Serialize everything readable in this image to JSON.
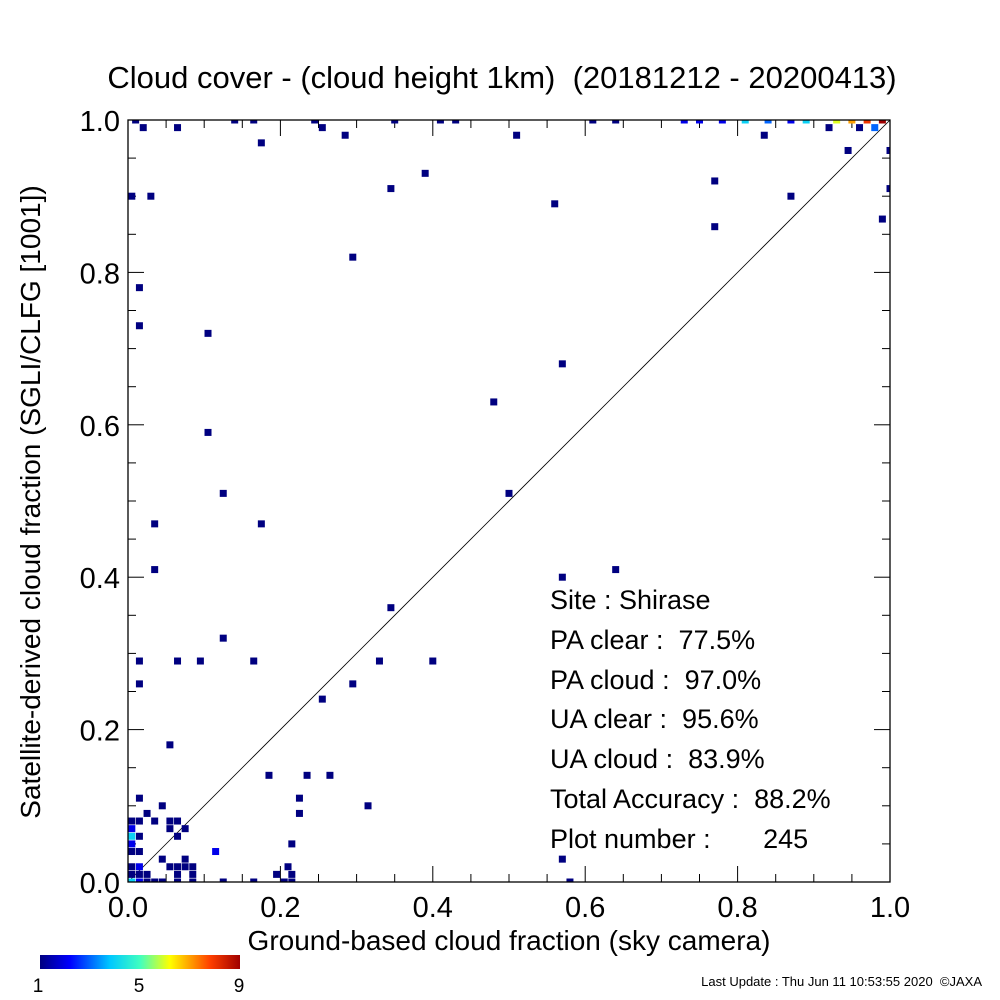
{
  "chart_data": {
    "type": "heatmap",
    "title": "Cloud cover - (cloud height 1km)  (20181212 - 20200413)",
    "xlabel": "Ground-based cloud fraction (sky camera)",
    "ylabel": "Satellite-derived cloud fraction (SGLI/CLFG [1001])",
    "xlim": [
      0,
      1
    ],
    "ylim": [
      0,
      1
    ],
    "x_ticks": [
      "0.0",
      "0.2",
      "0.4",
      "0.6",
      "0.8",
      "1.0"
    ],
    "y_ticks": [
      "0.0",
      "0.2",
      "0.4",
      "0.6",
      "0.8",
      "1.0"
    ],
    "grid": false,
    "reference_line": "y = x",
    "colorbar": {
      "min": 1,
      "max": 9,
      "ticks": [
        "1",
        "5",
        "9"
      ],
      "colormap": "rainbow"
    },
    "stats": [
      "Site : Shirase",
      "PA clear :  77.5%",
      "PA cloud :  97.0%",
      "UA clear :  95.6%",
      "UA cloud :  83.9%",
      "Total Accuracy :  88.2%",
      "Plot number :       245"
    ],
    "cells": [
      {
        "x": 0.01,
        "y": 1.0,
        "count": 1
      },
      {
        "x": 0.02,
        "y": 0.99,
        "count": 1
      },
      {
        "x": 0.065,
        "y": 0.99,
        "count": 1
      },
      {
        "x": 0.14,
        "y": 1.0,
        "count": 1
      },
      {
        "x": 0.165,
        "y": 1.0,
        "count": 1
      },
      {
        "x": 0.245,
        "y": 1.0,
        "count": 1
      },
      {
        "x": 0.255,
        "y": 0.99,
        "count": 1
      },
      {
        "x": 0.35,
        "y": 1.0,
        "count": 1
      },
      {
        "x": 0.41,
        "y": 1.0,
        "count": 1
      },
      {
        "x": 0.43,
        "y": 1.0,
        "count": 1
      },
      {
        "x": 0.61,
        "y": 1.0,
        "count": 1
      },
      {
        "x": 0.64,
        "y": 1.0,
        "count": 1
      },
      {
        "x": 0.73,
        "y": 1.0,
        "count": 2
      },
      {
        "x": 0.75,
        "y": 1.0,
        "count": 2
      },
      {
        "x": 0.78,
        "y": 1.0,
        "count": 2
      },
      {
        "x": 0.81,
        "y": 1.0,
        "count": 4
      },
      {
        "x": 0.84,
        "y": 1.0,
        "count": 3
      },
      {
        "x": 0.87,
        "y": 1.0,
        "count": 2
      },
      {
        "x": 0.89,
        "y": 1.0,
        "count": 4
      },
      {
        "x": 0.93,
        "y": 1.0,
        "count": 6
      },
      {
        "x": 0.95,
        "y": 1.0,
        "count": 7
      },
      {
        "x": 0.97,
        "y": 1.0,
        "count": 8
      },
      {
        "x": 0.99,
        "y": 1.0,
        "count": 9
      },
      {
        "x": 0.98,
        "y": 0.99,
        "count": 3
      },
      {
        "x": 0.96,
        "y": 0.99,
        "count": 1
      },
      {
        "x": 0.92,
        "y": 0.99,
        "count": 1
      },
      {
        "x": 0.175,
        "y": 0.97,
        "count": 1
      },
      {
        "x": 0.285,
        "y": 0.98,
        "count": 1
      },
      {
        "x": 0.51,
        "y": 0.98,
        "count": 1
      },
      {
        "x": 0.835,
        "y": 0.98,
        "count": 1
      },
      {
        "x": 0.945,
        "y": 0.96,
        "count": 1
      },
      {
        "x": 1.0,
        "y": 0.96,
        "count": 1
      },
      {
        "x": 0.39,
        "y": 0.93,
        "count": 1
      },
      {
        "x": 0.77,
        "y": 0.92,
        "count": 1
      },
      {
        "x": 0.345,
        "y": 0.91,
        "count": 1
      },
      {
        "x": 1.0,
        "y": 0.91,
        "count": 1
      },
      {
        "x": 0.005,
        "y": 0.9,
        "count": 1
      },
      {
        "x": 0.03,
        "y": 0.9,
        "count": 1
      },
      {
        "x": 0.87,
        "y": 0.9,
        "count": 1
      },
      {
        "x": 0.56,
        "y": 0.89,
        "count": 1
      },
      {
        "x": 0.99,
        "y": 0.87,
        "count": 1
      },
      {
        "x": 0.77,
        "y": 0.86,
        "count": 1
      },
      {
        "x": 0.295,
        "y": 0.82,
        "count": 1
      },
      {
        "x": 0.015,
        "y": 0.78,
        "count": 1
      },
      {
        "x": 0.015,
        "y": 0.73,
        "count": 1
      },
      {
        "x": 0.105,
        "y": 0.72,
        "count": 1
      },
      {
        "x": 0.57,
        "y": 0.68,
        "count": 1
      },
      {
        "x": 0.48,
        "y": 0.63,
        "count": 1
      },
      {
        "x": 0.105,
        "y": 0.59,
        "count": 1
      },
      {
        "x": 0.125,
        "y": 0.51,
        "count": 1
      },
      {
        "x": 0.5,
        "y": 0.51,
        "count": 1
      },
      {
        "x": 0.035,
        "y": 0.47,
        "count": 1
      },
      {
        "x": 0.175,
        "y": 0.47,
        "count": 1
      },
      {
        "x": 0.57,
        "y": 0.4,
        "count": 1
      },
      {
        "x": 0.035,
        "y": 0.41,
        "count": 1
      },
      {
        "x": 0.64,
        "y": 0.41,
        "count": 1
      },
      {
        "x": 0.345,
        "y": 0.36,
        "count": 1
      },
      {
        "x": 0.125,
        "y": 0.32,
        "count": 1
      },
      {
        "x": 0.015,
        "y": 0.29,
        "count": 1
      },
      {
        "x": 0.065,
        "y": 0.29,
        "count": 1
      },
      {
        "x": 0.095,
        "y": 0.29,
        "count": 1
      },
      {
        "x": 0.165,
        "y": 0.29,
        "count": 1
      },
      {
        "x": 0.33,
        "y": 0.29,
        "count": 1
      },
      {
        "x": 0.4,
        "y": 0.29,
        "count": 1
      },
      {
        "x": 0.015,
        "y": 0.26,
        "count": 1
      },
      {
        "x": 0.295,
        "y": 0.26,
        "count": 1
      },
      {
        "x": 0.255,
        "y": 0.24,
        "count": 1
      },
      {
        "x": 0.055,
        "y": 0.18,
        "count": 1
      },
      {
        "x": 0.185,
        "y": 0.14,
        "count": 1
      },
      {
        "x": 0.235,
        "y": 0.14,
        "count": 1
      },
      {
        "x": 0.265,
        "y": 0.14,
        "count": 1
      },
      {
        "x": 0.015,
        "y": 0.11,
        "count": 1
      },
      {
        "x": 0.225,
        "y": 0.11,
        "count": 1
      },
      {
        "x": 0.045,
        "y": 0.1,
        "count": 1
      },
      {
        "x": 0.315,
        "y": 0.1,
        "count": 1
      },
      {
        "x": 0.225,
        "y": 0.09,
        "count": 1
      },
      {
        "x": 0.025,
        "y": 0.09,
        "count": 1
      },
      {
        "x": 0.005,
        "y": 0.08,
        "count": 1
      },
      {
        "x": 0.015,
        "y": 0.08,
        "count": 1
      },
      {
        "x": 0.035,
        "y": 0.08,
        "count": 1
      },
      {
        "x": 0.055,
        "y": 0.08,
        "count": 1
      },
      {
        "x": 0.065,
        "y": 0.08,
        "count": 1
      },
      {
        "x": 0.055,
        "y": 0.07,
        "count": 1
      },
      {
        "x": 0.075,
        "y": 0.07,
        "count": 1
      },
      {
        "x": 0.005,
        "y": 0.07,
        "count": 2
      },
      {
        "x": 0.005,
        "y": 0.06,
        "count": 4
      },
      {
        "x": 0.015,
        "y": 0.06,
        "count": 1
      },
      {
        "x": 0.005,
        "y": 0.05,
        "count": 2
      },
      {
        "x": 0.065,
        "y": 0.06,
        "count": 1
      },
      {
        "x": 0.005,
        "y": 0.04,
        "count": 1
      },
      {
        "x": 0.015,
        "y": 0.04,
        "count": 1
      },
      {
        "x": 0.045,
        "y": 0.03,
        "count": 1
      },
      {
        "x": 0.075,
        "y": 0.03,
        "count": 1
      },
      {
        "x": 0.115,
        "y": 0.04,
        "count": 2
      },
      {
        "x": 0.215,
        "y": 0.05,
        "count": 1
      },
      {
        "x": 0.005,
        "y": 0.02,
        "count": 1
      },
      {
        "x": 0.015,
        "y": 0.02,
        "count": 2
      },
      {
        "x": 0.055,
        "y": 0.02,
        "count": 1
      },
      {
        "x": 0.065,
        "y": 0.02,
        "count": 1
      },
      {
        "x": 0.075,
        "y": 0.02,
        "count": 1
      },
      {
        "x": 0.085,
        "y": 0.02,
        "count": 1
      },
      {
        "x": 0.21,
        "y": 0.02,
        "count": 1
      },
      {
        "x": 0.57,
        "y": 0.03,
        "count": 1
      },
      {
        "x": 0.005,
        "y": 0.01,
        "count": 1
      },
      {
        "x": 0.015,
        "y": 0.01,
        "count": 1
      },
      {
        "x": 0.025,
        "y": 0.01,
        "count": 1
      },
      {
        "x": 0.065,
        "y": 0.01,
        "count": 1
      },
      {
        "x": 0.085,
        "y": 0.01,
        "count": 1
      },
      {
        "x": 0.195,
        "y": 0.01,
        "count": 1
      },
      {
        "x": 0.215,
        "y": 0.01,
        "count": 1
      },
      {
        "x": 0.005,
        "y": 0.0,
        "count": 4
      },
      {
        "x": 0.015,
        "y": 0.0,
        "count": 2
      },
      {
        "x": 0.025,
        "y": 0.0,
        "count": 1
      },
      {
        "x": 0.035,
        "y": 0.0,
        "count": 1
      },
      {
        "x": 0.045,
        "y": 0.0,
        "count": 1
      },
      {
        "x": 0.065,
        "y": 0.0,
        "count": 1
      },
      {
        "x": 0.085,
        "y": 0.0,
        "count": 1
      },
      {
        "x": 0.125,
        "y": 0.0,
        "count": 1
      },
      {
        "x": 0.165,
        "y": 0.0,
        "count": 1
      },
      {
        "x": 0.205,
        "y": 0.0,
        "count": 1
      },
      {
        "x": 0.215,
        "y": 0.0,
        "count": 1
      },
      {
        "x": 0.58,
        "y": 0.0,
        "count": 1
      }
    ]
  },
  "footer": {
    "last_update": "Last Update : Thu Jun 11 10:53:55 2020  ©JAXA"
  }
}
